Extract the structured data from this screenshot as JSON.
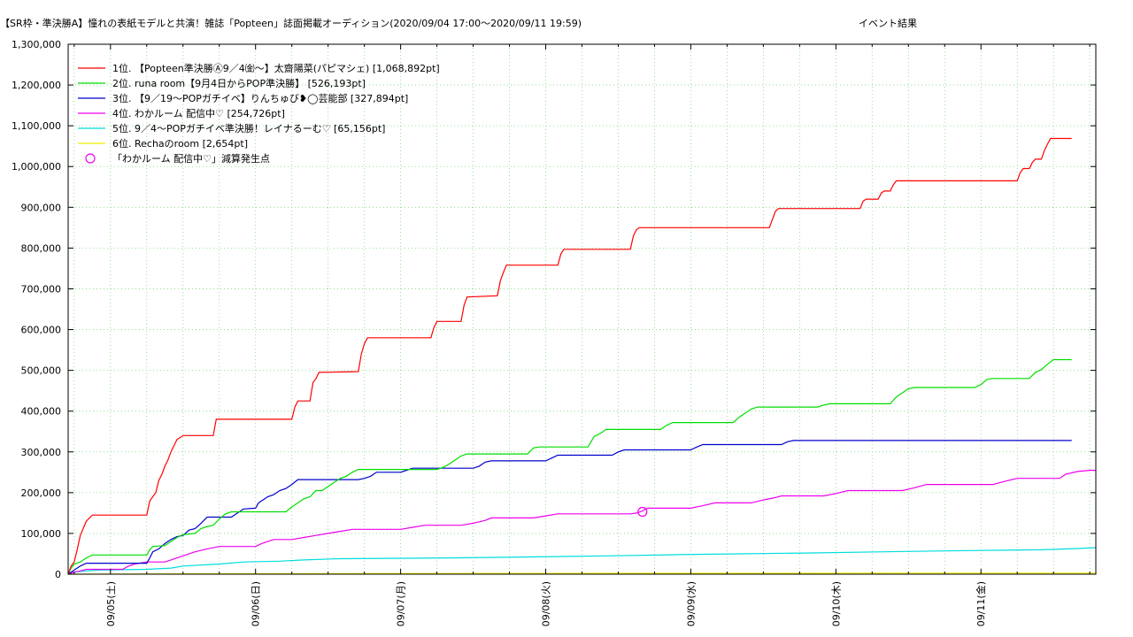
{
  "chart_data": {
    "type": "line",
    "title": "【SR枠・準決勝A】憧れの表紙モデルと共演！雑誌「Popteen」誌面掲載オーディション(2020/09/04 17:00〜2020/09/11 19:59)",
    "subtitle": "イベント結果",
    "xlabel": "",
    "ylabel": "",
    "ylim": [
      0,
      1300000
    ],
    "xlim": [
      17,
      187
    ],
    "x_unit": "hours since 2020/09/04 00:00",
    "yticks": [
      "0",
      "100,000",
      "200,000",
      "300,000",
      "400,000",
      "500,000",
      "600,000",
      "700,000",
      "800,000",
      "900,000",
      "1,000,000",
      "1,100,000",
      "1,200,000",
      "1,300,000"
    ],
    "xticks": [
      {
        "label": "09/05(土)",
        "x": 24
      },
      {
        "label": "09/06(日)",
        "x": 48
      },
      {
        "label": "09/07(月)",
        "x": 72
      },
      {
        "label": "09/08(火)",
        "x": 96
      },
      {
        "label": "09/09(水)",
        "x": 120
      },
      {
        "label": "09/10(木)",
        "x": 144
      },
      {
        "label": "09/11(金)",
        "x": 168
      }
    ],
    "grid": true,
    "legend_position": "top-left",
    "series": [
      {
        "name": "1位. 【Popteen準決勝Ⓐ9／4㈮〜】太齋陽菜(パピマシェ) [1,068,892pt]",
        "color": "#ff0000",
        "points": [
          [
            17,
            0
          ],
          [
            17.5,
            20000
          ],
          [
            18,
            30000
          ],
          [
            18.5,
            60000
          ],
          [
            19,
            95000
          ],
          [
            20,
            130000
          ],
          [
            21,
            145000
          ],
          [
            30,
            145000
          ],
          [
            30.5,
            180000
          ],
          [
            31,
            190000
          ],
          [
            31.5,
            200000
          ],
          [
            32,
            230000
          ],
          [
            32.5,
            245000
          ],
          [
            33,
            265000
          ],
          [
            33.5,
            280000
          ],
          [
            34,
            300000
          ],
          [
            34.5,
            315000
          ],
          [
            35,
            330000
          ],
          [
            36,
            340000
          ],
          [
            41,
            340000
          ],
          [
            41.5,
            380000
          ],
          [
            54,
            380000
          ],
          [
            54.5,
            410000
          ],
          [
            55,
            425000
          ],
          [
            57,
            425000
          ],
          [
            57.5,
            470000
          ],
          [
            58,
            480000
          ],
          [
            58.5,
            495000
          ],
          [
            65,
            497000
          ],
          [
            65.5,
            540000
          ],
          [
            66,
            565000
          ],
          [
            66.5,
            580000
          ],
          [
            77,
            580000
          ],
          [
            77.5,
            605000
          ],
          [
            78,
            620000
          ],
          [
            82,
            620000
          ],
          [
            82.5,
            660000
          ],
          [
            83,
            680000
          ],
          [
            88,
            683000
          ],
          [
            88.5,
            720000
          ],
          [
            89,
            740000
          ],
          [
            89.5,
            758000
          ],
          [
            98,
            758000
          ],
          [
            98.5,
            785000
          ],
          [
            99,
            797000
          ],
          [
            110,
            797000
          ],
          [
            110.5,
            830000
          ],
          [
            111,
            845000
          ],
          [
            111.5,
            850000
          ],
          [
            133,
            850000
          ],
          [
            133.5,
            870000
          ],
          [
            134,
            890000
          ],
          [
            134.5,
            897000
          ],
          [
            148,
            897000
          ],
          [
            148.5,
            915000
          ],
          [
            149,
            920000
          ],
          [
            151,
            920000
          ],
          [
            151.5,
            935000
          ],
          [
            152,
            940000
          ],
          [
            153,
            940000
          ],
          [
            153.5,
            955000
          ],
          [
            154,
            965000
          ],
          [
            174,
            965000
          ],
          [
            174.5,
            985000
          ],
          [
            175,
            995000
          ],
          [
            176,
            995000
          ],
          [
            176.5,
            1010000
          ],
          [
            177,
            1018000
          ],
          [
            178,
            1018000
          ],
          [
            178.5,
            1040000
          ],
          [
            179,
            1055000
          ],
          [
            179.5,
            1068892
          ],
          [
            183,
            1068892
          ]
        ]
      },
      {
        "name": "2位. runa room【9月4日からPOP準決勝】 [526,193pt]",
        "color": "#00dd00",
        "points": [
          [
            17,
            0
          ],
          [
            17.5,
            15000
          ],
          [
            18,
            25000
          ],
          [
            19,
            30000
          ],
          [
            20,
            40000
          ],
          [
            21,
            47000
          ],
          [
            30,
            47000
          ],
          [
            30.5,
            60000
          ],
          [
            31,
            68000
          ],
          [
            33,
            70000
          ],
          [
            34,
            80000
          ],
          [
            35,
            90000
          ],
          [
            36,
            97000
          ],
          [
            38,
            100000
          ],
          [
            39,
            112000
          ],
          [
            40,
            117000
          ],
          [
            41,
            120000
          ],
          [
            42,
            135000
          ],
          [
            43,
            148000
          ],
          [
            44,
            153000
          ],
          [
            53,
            153000
          ],
          [
            54,
            165000
          ],
          [
            55,
            175000
          ],
          [
            56,
            185000
          ],
          [
            57,
            190000
          ],
          [
            58,
            205000
          ],
          [
            59,
            205000
          ],
          [
            60,
            215000
          ],
          [
            61,
            225000
          ],
          [
            62,
            235000
          ],
          [
            63,
            240000
          ],
          [
            64,
            250000
          ],
          [
            65,
            257000
          ],
          [
            78,
            257000
          ],
          [
            79,
            262000
          ],
          [
            80,
            270000
          ],
          [
            81,
            280000
          ],
          [
            82,
            290000
          ],
          [
            83,
            295000
          ],
          [
            93,
            295000
          ],
          [
            94,
            310000
          ],
          [
            95,
            312000
          ],
          [
            103,
            312000
          ],
          [
            103.5,
            325000
          ],
          [
            104,
            338000
          ],
          [
            105,
            345000
          ],
          [
            106,
            355000
          ],
          [
            115,
            355000
          ],
          [
            116,
            365000
          ],
          [
            117,
            372000
          ],
          [
            127,
            372000
          ],
          [
            128,
            385000
          ],
          [
            129,
            395000
          ],
          [
            130,
            405000
          ],
          [
            131,
            410000
          ],
          [
            141,
            410000
          ],
          [
            142,
            415000
          ],
          [
            143,
            418000
          ],
          [
            153,
            418000
          ],
          [
            154,
            435000
          ],
          [
            155,
            445000
          ],
          [
            156,
            455000
          ],
          [
            157,
            458000
          ],
          [
            167,
            458000
          ],
          [
            168,
            465000
          ],
          [
            169,
            478000
          ],
          [
            170,
            480000
          ],
          [
            176,
            480000
          ],
          [
            177,
            495000
          ],
          [
            178,
            502000
          ],
          [
            179,
            515000
          ],
          [
            180,
            526193
          ],
          [
            183,
            526193
          ]
        ]
      },
      {
        "name": "3位. 【9／19〜POPガチイベ】りんちゅび❥◯芸能部 [327,894pt]",
        "color": "#0000cc",
        "points": [
          [
            17,
            0
          ],
          [
            18,
            10000
          ],
          [
            19,
            20000
          ],
          [
            20,
            27000
          ],
          [
            30,
            27000
          ],
          [
            30.5,
            40000
          ],
          [
            31,
            55000
          ],
          [
            32,
            62000
          ],
          [
            33,
            75000
          ],
          [
            34,
            85000
          ],
          [
            35,
            92000
          ],
          [
            36,
            95000
          ],
          [
            37,
            108000
          ],
          [
            38,
            112000
          ],
          [
            39,
            125000
          ],
          [
            40,
            140000
          ],
          [
            44,
            140000
          ],
          [
            45,
            150000
          ],
          [
            46,
            160000
          ],
          [
            48,
            162000
          ],
          [
            48.5,
            175000
          ],
          [
            49,
            180000
          ],
          [
            50,
            190000
          ],
          [
            51,
            195000
          ],
          [
            52,
            205000
          ],
          [
            53,
            210000
          ],
          [
            54,
            220000
          ],
          [
            55,
            232000
          ],
          [
            65,
            232000
          ],
          [
            66,
            235000
          ],
          [
            67,
            240000
          ],
          [
            68,
            250000
          ],
          [
            72,
            250000
          ],
          [
            73,
            255000
          ],
          [
            74,
            260000
          ],
          [
            84,
            260000
          ],
          [
            85,
            265000
          ],
          [
            86,
            275000
          ],
          [
            87,
            278000
          ],
          [
            96,
            278000
          ],
          [
            97,
            285000
          ],
          [
            98,
            292000
          ],
          [
            107,
            292000
          ],
          [
            108,
            300000
          ],
          [
            109,
            305000
          ],
          [
            120,
            305000
          ],
          [
            121,
            312000
          ],
          [
            122,
            318000
          ],
          [
            135,
            318000
          ],
          [
            136,
            325000
          ],
          [
            137,
            327894
          ],
          [
            183,
            327894
          ]
        ]
      },
      {
        "name": "4位. わかルーム 配信中♡ [254,726pt]",
        "color": "#ee00ee",
        "points": [
          [
            17,
            0
          ],
          [
            18,
            5000
          ],
          [
            19,
            8000
          ],
          [
            20,
            12000
          ],
          [
            26,
            12000
          ],
          [
            27,
            20000
          ],
          [
            28,
            25000
          ],
          [
            30,
            30000
          ],
          [
            33,
            30000
          ],
          [
            34,
            35000
          ],
          [
            35,
            40000
          ],
          [
            36,
            45000
          ],
          [
            38,
            55000
          ],
          [
            40,
            62000
          ],
          [
            42,
            68000
          ],
          [
            48,
            68000
          ],
          [
            49,
            75000
          ],
          [
            50,
            80000
          ],
          [
            51,
            85000
          ],
          [
            54,
            85000
          ],
          [
            56,
            90000
          ],
          [
            58,
            95000
          ],
          [
            60,
            100000
          ],
          [
            62,
            105000
          ],
          [
            64,
            110000
          ],
          [
            72,
            110000
          ],
          [
            74,
            115000
          ],
          [
            76,
            120000
          ],
          [
            82,
            120000
          ],
          [
            84,
            125000
          ],
          [
            86,
            132000
          ],
          [
            87,
            138000
          ],
          [
            94,
            138000
          ],
          [
            96,
            143000
          ],
          [
            98,
            148000
          ],
          [
            110,
            148000
          ],
          [
            111,
            150000
          ],
          [
            112,
            155000
          ],
          [
            112.5,
            160000
          ],
          [
            113,
            162000
          ],
          [
            120,
            162000
          ],
          [
            122,
            168000
          ],
          [
            124,
            175000
          ],
          [
            130,
            175000
          ],
          [
            132,
            182000
          ],
          [
            134,
            188000
          ],
          [
            135,
            192000
          ],
          [
            142,
            192000
          ],
          [
            144,
            198000
          ],
          [
            146,
            205000
          ],
          [
            155,
            205000
          ],
          [
            157,
            212000
          ],
          [
            159,
            220000
          ],
          [
            170,
            220000
          ],
          [
            172,
            228000
          ],
          [
            174,
            235000
          ],
          [
            181,
            235000
          ],
          [
            182,
            245000
          ],
          [
            184,
            252000
          ],
          [
            186,
            254726
          ],
          [
            187,
            254726
          ]
        ]
      },
      {
        "name": "5位. 9／4〜POPガチイベ準決勝！レイナるーむ♡ [65,156pt]",
        "color": "#00dddd",
        "points": [
          [
            17,
            0
          ],
          [
            18,
            5000
          ],
          [
            20,
            8000
          ],
          [
            22,
            10000
          ],
          [
            30,
            12000
          ],
          [
            34,
            15000
          ],
          [
            36,
            20000
          ],
          [
            42,
            25000
          ],
          [
            46,
            30000
          ],
          [
            52,
            32000
          ],
          [
            56,
            35000
          ],
          [
            62,
            38000
          ],
          [
            80,
            40000
          ],
          [
            92,
            42000
          ],
          [
            106,
            45000
          ],
          [
            118,
            48000
          ],
          [
            128,
            50000
          ],
          [
            140,
            52000
          ],
          [
            152,
            55000
          ],
          [
            166,
            58000
          ],
          [
            178,
            60000
          ],
          [
            184,
            63000
          ],
          [
            187,
            65156
          ]
        ]
      },
      {
        "name": "6位. Rechaのroom [2,654pt]",
        "color": "#eeee00",
        "points": [
          [
            17,
            0
          ],
          [
            40,
            1000
          ],
          [
            80,
            1800
          ],
          [
            120,
            2200
          ],
          [
            160,
            2500
          ],
          [
            187,
            2654
          ]
        ]
      }
    ],
    "markers": [
      {
        "name": "「わかルーム 配信中♡」減算発生点",
        "color": "#ee00ee",
        "x": 112,
        "y": 153000
      }
    ]
  }
}
